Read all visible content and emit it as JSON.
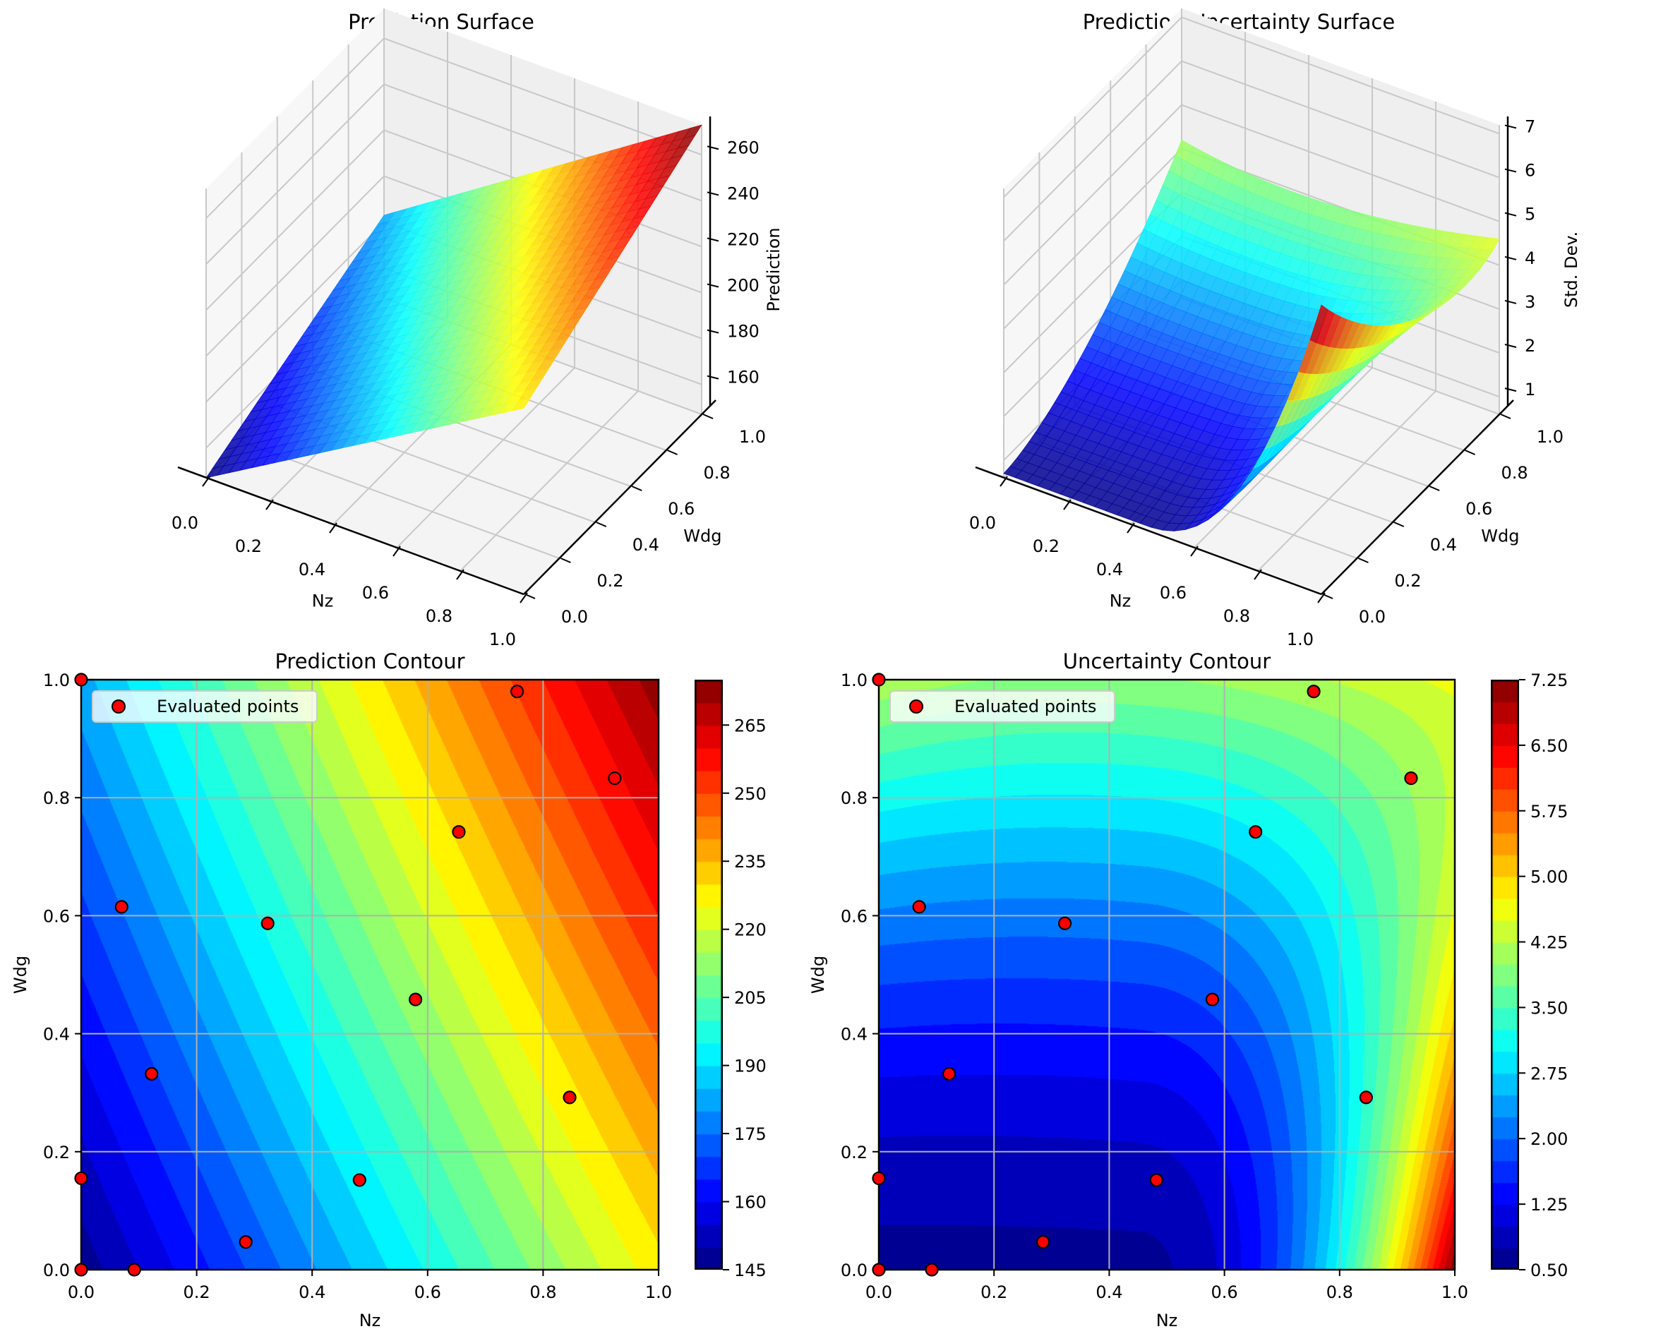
{
  "chart_data": [
    {
      "type": "surface3d",
      "title": "Prediction Surface",
      "xlabel": "Nz",
      "ylabel": "Wdg",
      "zlabel": "Prediction",
      "xticks": [
        "0.0",
        "0.2",
        "0.4",
        "0.6",
        "0.8",
        "1.0"
      ],
      "yticks": [
        "0.0",
        "0.2",
        "0.4",
        "0.6",
        "0.8",
        "1.0"
      ],
      "zticks": [
        "160",
        "180",
        "200",
        "220",
        "240",
        "260"
      ],
      "xlim": [
        0,
        1
      ],
      "ylim": [
        0,
        1
      ],
      "zlim": [
        147,
        273
      ],
      "corner_values": {
        "nz0_wdg0": 147,
        "nz1_wdg0": 228,
        "nz0_wdg1": 183,
        "nz1_wdg1": 273
      },
      "colormap": "jet"
    },
    {
      "type": "surface3d",
      "title": "Prediction Uncertainty Surface",
      "xlabel": "Nz",
      "ylabel": "Wdg",
      "zlabel": "Std. Dev.",
      "xticks": [
        "0.0",
        "0.2",
        "0.4",
        "0.6",
        "0.8",
        "1.0"
      ],
      "yticks": [
        "0.0",
        "0.2",
        "0.4",
        "0.6",
        "0.8",
        "1.0"
      ],
      "zticks": [
        "1",
        "2",
        "3",
        "4",
        "5",
        "6",
        "7"
      ],
      "xlim": [
        0,
        1
      ],
      "ylim": [
        0,
        1
      ],
      "zlim": [
        0.6,
        7.2
      ],
      "corner_values": {
        "nz0_wdg0": 1.0,
        "nz1_wdg0": 7.2,
        "nz0_wdg1": 3.6,
        "nz1_wdg1": 3.9
      },
      "colormap": "jet"
    },
    {
      "type": "contour",
      "title": "Prediction Contour",
      "xlabel": "Nz",
      "ylabel": "Wdg",
      "xticks": [
        "0.0",
        "0.2",
        "0.4",
        "0.6",
        "0.8",
        "1.0"
      ],
      "yticks": [
        "0.0",
        "0.2",
        "0.4",
        "0.6",
        "0.8",
        "1.0"
      ],
      "xlim": [
        0,
        1
      ],
      "ylim": [
        0,
        1
      ],
      "grid": true,
      "levels": {
        "min": 145,
        "max": 275,
        "step": 5
      },
      "colorbar_ticks": [
        "145",
        "160",
        "175",
        "190",
        "205",
        "220",
        "235",
        "250",
        "265"
      ],
      "colorbar_range": [
        145,
        275
      ],
      "legend": {
        "label": "Evaluated points",
        "position": "upper-left"
      },
      "colormap": "jet"
    },
    {
      "type": "contour",
      "title": "Uncertainty Contour",
      "xlabel": "Nz",
      "ylabel": "Wdg",
      "xticks": [
        "0.0",
        "0.2",
        "0.4",
        "0.6",
        "0.8",
        "1.0"
      ],
      "yticks": [
        "0.0",
        "0.2",
        "0.4",
        "0.6",
        "0.8",
        "1.0"
      ],
      "xlim": [
        0,
        1
      ],
      "ylim": [
        0,
        1
      ],
      "grid": true,
      "levels": {
        "min": 0.5,
        "max": 7.25,
        "step": 0.25
      },
      "colorbar_ticks": [
        "0.50",
        "1.25",
        "2.00",
        "2.75",
        "3.50",
        "4.25",
        "5.00",
        "5.75",
        "6.50",
        "7.25"
      ],
      "colorbar_range": [
        0.5,
        7.25
      ],
      "legend": {
        "label": "Evaluated points",
        "position": "upper-left"
      },
      "colormap": "jet"
    }
  ],
  "evaluated_points": [
    {
      "nz": 0.0,
      "wdg": 1.0
    },
    {
      "nz": 0.755,
      "wdg": 0.98
    },
    {
      "nz": 0.924,
      "wdg": 0.833
    },
    {
      "nz": 0.654,
      "wdg": 0.742
    },
    {
      "nz": 0.07,
      "wdg": 0.615
    },
    {
      "nz": 0.323,
      "wdg": 0.587
    },
    {
      "nz": 0.579,
      "wdg": 0.458
    },
    {
      "nz": 0.122,
      "wdg": 0.332
    },
    {
      "nz": 0.846,
      "wdg": 0.292
    },
    {
      "nz": 0.0,
      "wdg": 0.155
    },
    {
      "nz": 0.482,
      "wdg": 0.152
    },
    {
      "nz": 0.285,
      "wdg": 0.047
    },
    {
      "nz": 0.0,
      "wdg": 0.0
    },
    {
      "nz": 0.092,
      "wdg": 0.0
    }
  ],
  "colors": {
    "point_fill": "#ff0000",
    "point_edge": "#000000",
    "grid": "#b0b0b0",
    "pane": "#f2f2f2"
  }
}
